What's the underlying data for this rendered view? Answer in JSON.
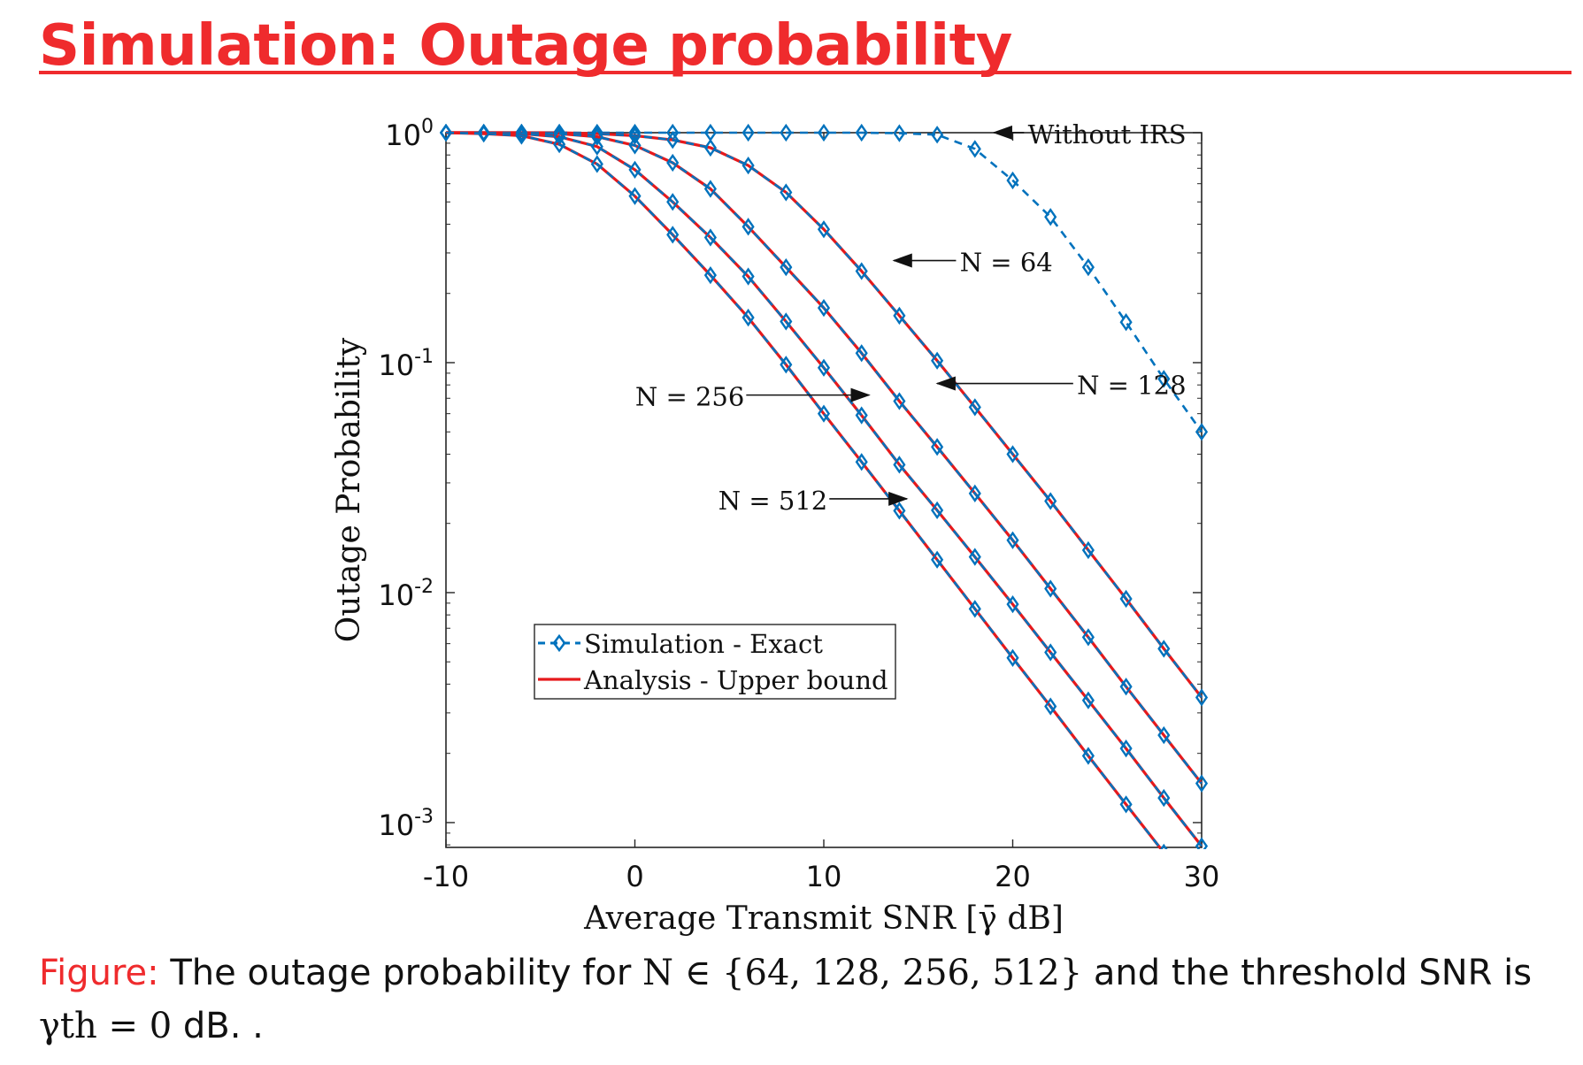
{
  "slide": {
    "title": "Simulation: Outage probability"
  },
  "caption": {
    "label": "Figure:",
    "text_before": "The outage probability for",
    "set_expr": "N ∈ {64, 128, 256, 512}",
    "text_mid": "and the threshold SNR is",
    "threshold_expr": "γth = 0",
    "text_end": "dB. ."
  },
  "chart_data": {
    "type": "line",
    "xlabel": "Average Transmit SNR [γ̄ dB]",
    "ylabel": "Outage Probability",
    "xlim": [
      -10,
      30
    ],
    "ylim": [
      0.00078,
      1
    ],
    "yscale": "log",
    "grid": false,
    "x_ticks": [
      "-10",
      "0",
      "10",
      "20",
      "30"
    ],
    "y_ticks": [
      "10^0",
      "10^-1",
      "10^-2",
      "10^-3"
    ],
    "legend": {
      "placement": "lower-left",
      "entries": [
        "Simulation - Exact",
        "Analysis - Upper bound"
      ]
    },
    "colors": {
      "simulation": "#0072bd",
      "analysis": "#e6191c"
    },
    "series": [
      {
        "name": "Without IRS",
        "style": "simulation",
        "x": [
          -10,
          -8,
          -6,
          -4,
          -2,
          0,
          2,
          4,
          6,
          8,
          10,
          12,
          14,
          16,
          18,
          20,
          22,
          24,
          26,
          28,
          30
        ],
        "values": [
          1.0,
          1.0,
          1.0,
          1.0,
          1.0,
          1.0,
          1.0,
          1.0,
          1.0,
          1.0,
          1.0,
          1.0,
          0.995,
          0.98,
          0.85,
          0.62,
          0.43,
          0.26,
          0.15,
          0.085,
          0.05
        ]
      },
      {
        "name": "N = 64",
        "style": "simulation",
        "x": [
          -10,
          -8,
          -6,
          -4,
          -2,
          0,
          2,
          4,
          6,
          8,
          10,
          12,
          14,
          16,
          18,
          20,
          22,
          24,
          26,
          28,
          30
        ],
        "values": [
          1.0,
          1.0,
          1.0,
          1.0,
          0.99,
          0.97,
          0.93,
          0.86,
          0.72,
          0.55,
          0.38,
          0.25,
          0.16,
          0.102,
          0.064,
          0.04,
          0.025,
          0.0153,
          0.0094,
          0.0057,
          0.0035
        ]
      },
      {
        "name": "N = 128",
        "style": "simulation",
        "x": [
          -10,
          -8,
          -6,
          -4,
          -2,
          0,
          2,
          4,
          6,
          8,
          10,
          12,
          14,
          16,
          18,
          20,
          22,
          24,
          26,
          28,
          30
        ],
        "values": [
          1.0,
          1.0,
          1.0,
          0.99,
          0.96,
          0.88,
          0.74,
          0.57,
          0.39,
          0.26,
          0.173,
          0.11,
          0.068,
          0.043,
          0.027,
          0.0169,
          0.0104,
          0.0064,
          0.0039,
          0.0024,
          0.00148
        ]
      },
      {
        "name": "N = 256",
        "style": "simulation",
        "x": [
          -10,
          -8,
          -6,
          -4,
          -2,
          0,
          2,
          4,
          6,
          8,
          10,
          12,
          14,
          16,
          18,
          20,
          22,
          24,
          26,
          28,
          30
        ],
        "values": [
          1.0,
          1.0,
          0.99,
          0.96,
          0.87,
          0.69,
          0.5,
          0.35,
          0.237,
          0.151,
          0.095,
          0.059,
          0.036,
          0.0228,
          0.0143,
          0.0089,
          0.0055,
          0.0034,
          0.0021,
          0.00128,
          0.00079
        ]
      },
      {
        "name": "N = 512",
        "style": "simulation",
        "x": [
          -10,
          -8,
          -6,
          -4,
          -2,
          0,
          2,
          4,
          6,
          8,
          10,
          12,
          14,
          16,
          18,
          20,
          22,
          24,
          26,
          28,
          30
        ],
        "values": [
          1.0,
          0.99,
          0.97,
          0.89,
          0.73,
          0.53,
          0.36,
          0.24,
          0.157,
          0.098,
          0.06,
          0.037,
          0.0227,
          0.0139,
          0.0085,
          0.0052,
          0.0032,
          0.00195,
          0.0012,
          0.00074,
          0.00046
        ]
      }
    ],
    "annotations": [
      "Without IRS",
      "N = 64",
      "N = 128",
      "N = 256",
      "N = 512"
    ]
  }
}
